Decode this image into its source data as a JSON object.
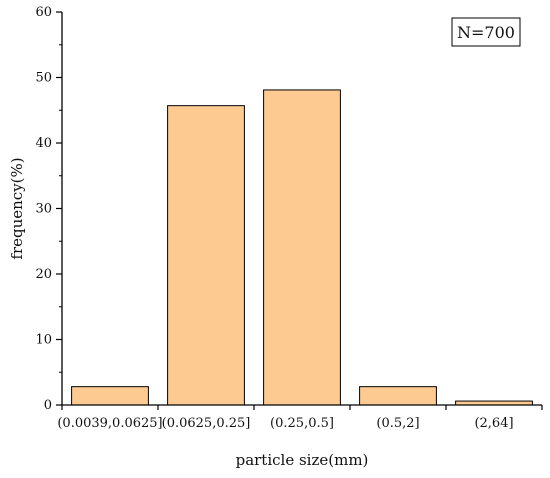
{
  "chart_data": {
    "type": "bar",
    "categories": [
      "(0.0039,0.0625]",
      "(0.0625,0.25]",
      "(0.25,0.5]",
      "(0.5,2]",
      "(2,64]"
    ],
    "values": [
      2.8,
      45.7,
      48.1,
      2.8,
      0.6
    ],
    "title": "",
    "xlabel": "particle size(mm)",
    "ylabel": "frequency(%)",
    "ylim": [
      0,
      60
    ],
    "yticks": [
      0,
      10,
      20,
      30,
      40,
      50,
      60
    ],
    "annotation": "N=700",
    "grid": false,
    "colors": {
      "bar_fill": "#FDCB91",
      "bar_stroke": "#000000",
      "axis": "#000000"
    }
  }
}
